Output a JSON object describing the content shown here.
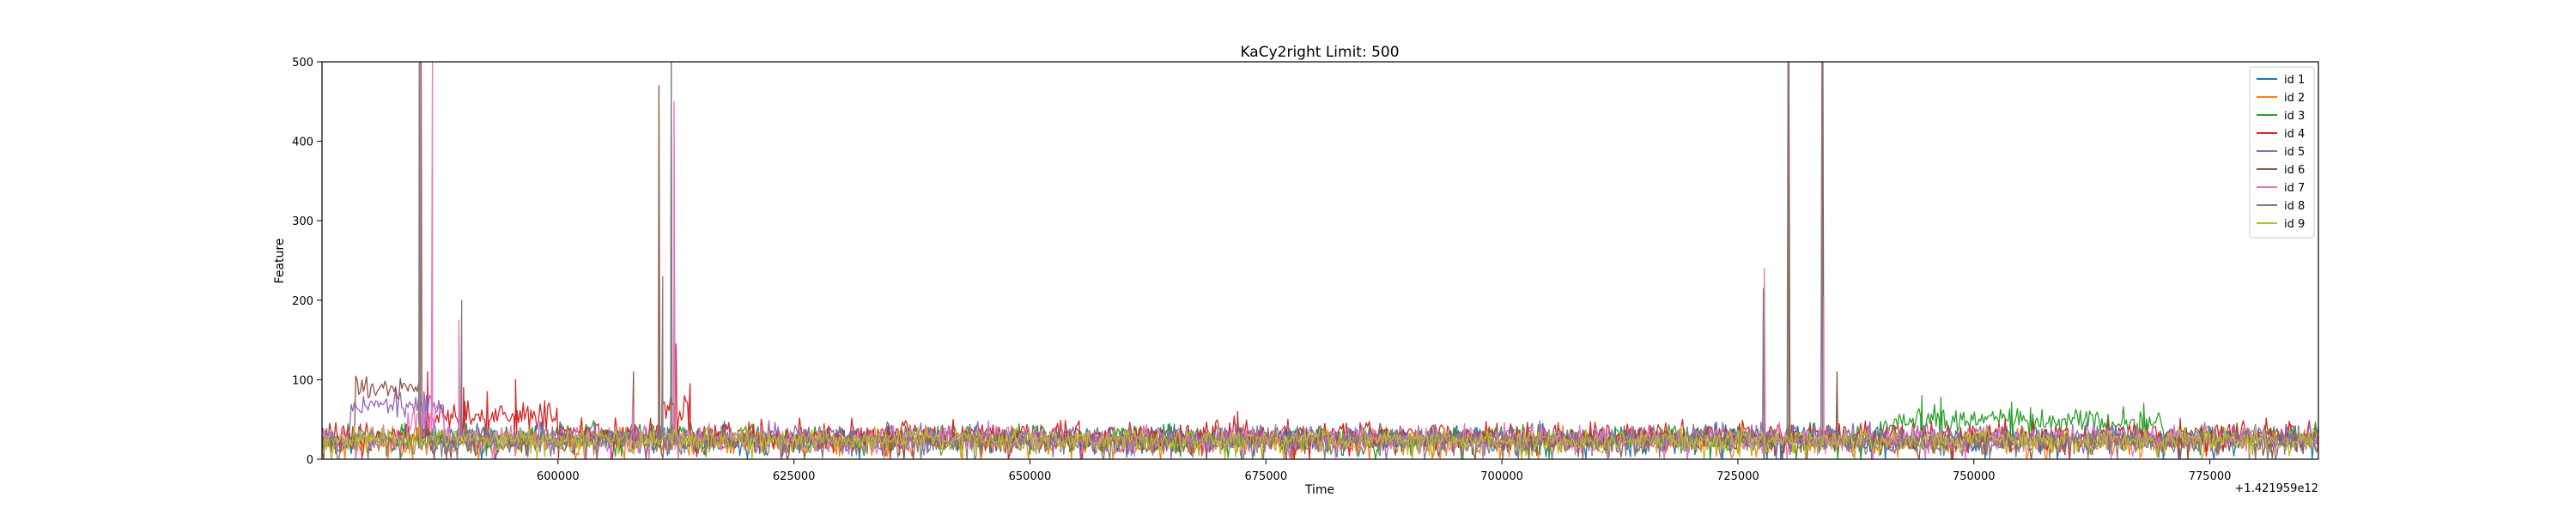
{
  "chart_data": {
    "type": "line",
    "title": "KaCy2right Limit: 500",
    "xlabel": "Time",
    "ylabel": "Feature",
    "x_offset_label": "+1.421959e12",
    "xlim": [
      575000,
      786500
    ],
    "ylim": [
      0,
      500
    ],
    "xticks": [
      600000,
      625000,
      650000,
      675000,
      700000,
      725000,
      750000,
      775000
    ],
    "yticks": [
      0,
      100,
      200,
      300,
      400,
      500
    ],
    "grid": false,
    "legend_position": "top-right",
    "series": [
      {
        "name": "id 1",
        "color": "#1f77b4",
        "baseline": 25,
        "noise": 10,
        "seed": 11,
        "drift": [],
        "spikes": []
      },
      {
        "name": "id 2",
        "color": "#ff7f0e",
        "baseline": 22,
        "noise": 10,
        "seed": 23,
        "drift": [],
        "spikes": []
      },
      {
        "name": "id 3",
        "color": "#2ca02c",
        "baseline": 28,
        "noise": 10,
        "seed": 37,
        "drift": [
          {
            "x0": 740000,
            "x1": 770000,
            "y": 20
          }
        ],
        "spikes": [
          [
            744500,
            80
          ],
          [
            746500,
            78
          ],
          [
            754000,
            72
          ],
          [
            756000,
            65
          ],
          [
            768000,
            70
          ]
        ]
      },
      {
        "name": "id 4",
        "color": "#d62728",
        "baseline": 30,
        "noise": 11,
        "seed": 41,
        "drift": [
          {
            "x0": 586000,
            "x1": 600000,
            "y": 25
          },
          {
            "x0": 611000,
            "x1": 614000,
            "y": 40
          }
        ],
        "spikes": [
          [
            586200,
            110
          ],
          [
            590000,
            90
          ],
          [
            592500,
            85
          ],
          [
            595500,
            100
          ],
          [
            612500,
            145
          ],
          [
            614000,
            95
          ],
          [
            672000,
            60
          ]
        ]
      },
      {
        "name": "id 5",
        "color": "#9467bd",
        "baseline": 28,
        "noise": 10,
        "seed": 53,
        "drift": [
          {
            "x0": 578000,
            "x1": 588000,
            "y": 40
          }
        ],
        "spikes": [
          [
            585800,
            85
          ]
        ]
      },
      {
        "name": "id 6",
        "color": "#8c564b",
        "baseline": 24,
        "noise": 10,
        "seed": 67,
        "drift": [
          {
            "x0": 578500,
            "x1": 585600,
            "y": 65
          }
        ],
        "spikes": [
          [
            585500,
            500
          ],
          [
            608000,
            110
          ],
          [
            610700,
            470
          ],
          [
            612000,
            500
          ],
          [
            730400,
            500
          ],
          [
            734000,
            500
          ],
          [
            735500,
            110
          ]
        ]
      },
      {
        "name": "id 7",
        "color": "#e377c2",
        "baseline": 25,
        "noise": 10,
        "seed": 71,
        "drift": [
          {
            "x0": 584000,
            "x1": 588000,
            "y": 30
          }
        ],
        "spikes": [
          [
            585400,
            500
          ],
          [
            586700,
            500
          ],
          [
            589500,
            175
          ],
          [
            607900,
            70
          ],
          [
            612300,
            450
          ],
          [
            727800,
            240
          ],
          [
            734100,
            205
          ]
        ]
      },
      {
        "name": "id 8",
        "color": "#7f7f7f",
        "baseline": 22,
        "noise": 10,
        "seed": 83,
        "drift": [],
        "spikes": [
          [
            585300,
            500
          ],
          [
            589800,
            200
          ],
          [
            611100,
            230
          ],
          [
            612000,
            500
          ],
          [
            727700,
            215
          ],
          [
            730300,
            500
          ],
          [
            733900,
            500
          ]
        ]
      },
      {
        "name": "id 9",
        "color": "#bcbd22",
        "baseline": 24,
        "noise": 9,
        "seed": 97,
        "drift": [],
        "spikes": []
      }
    ]
  }
}
